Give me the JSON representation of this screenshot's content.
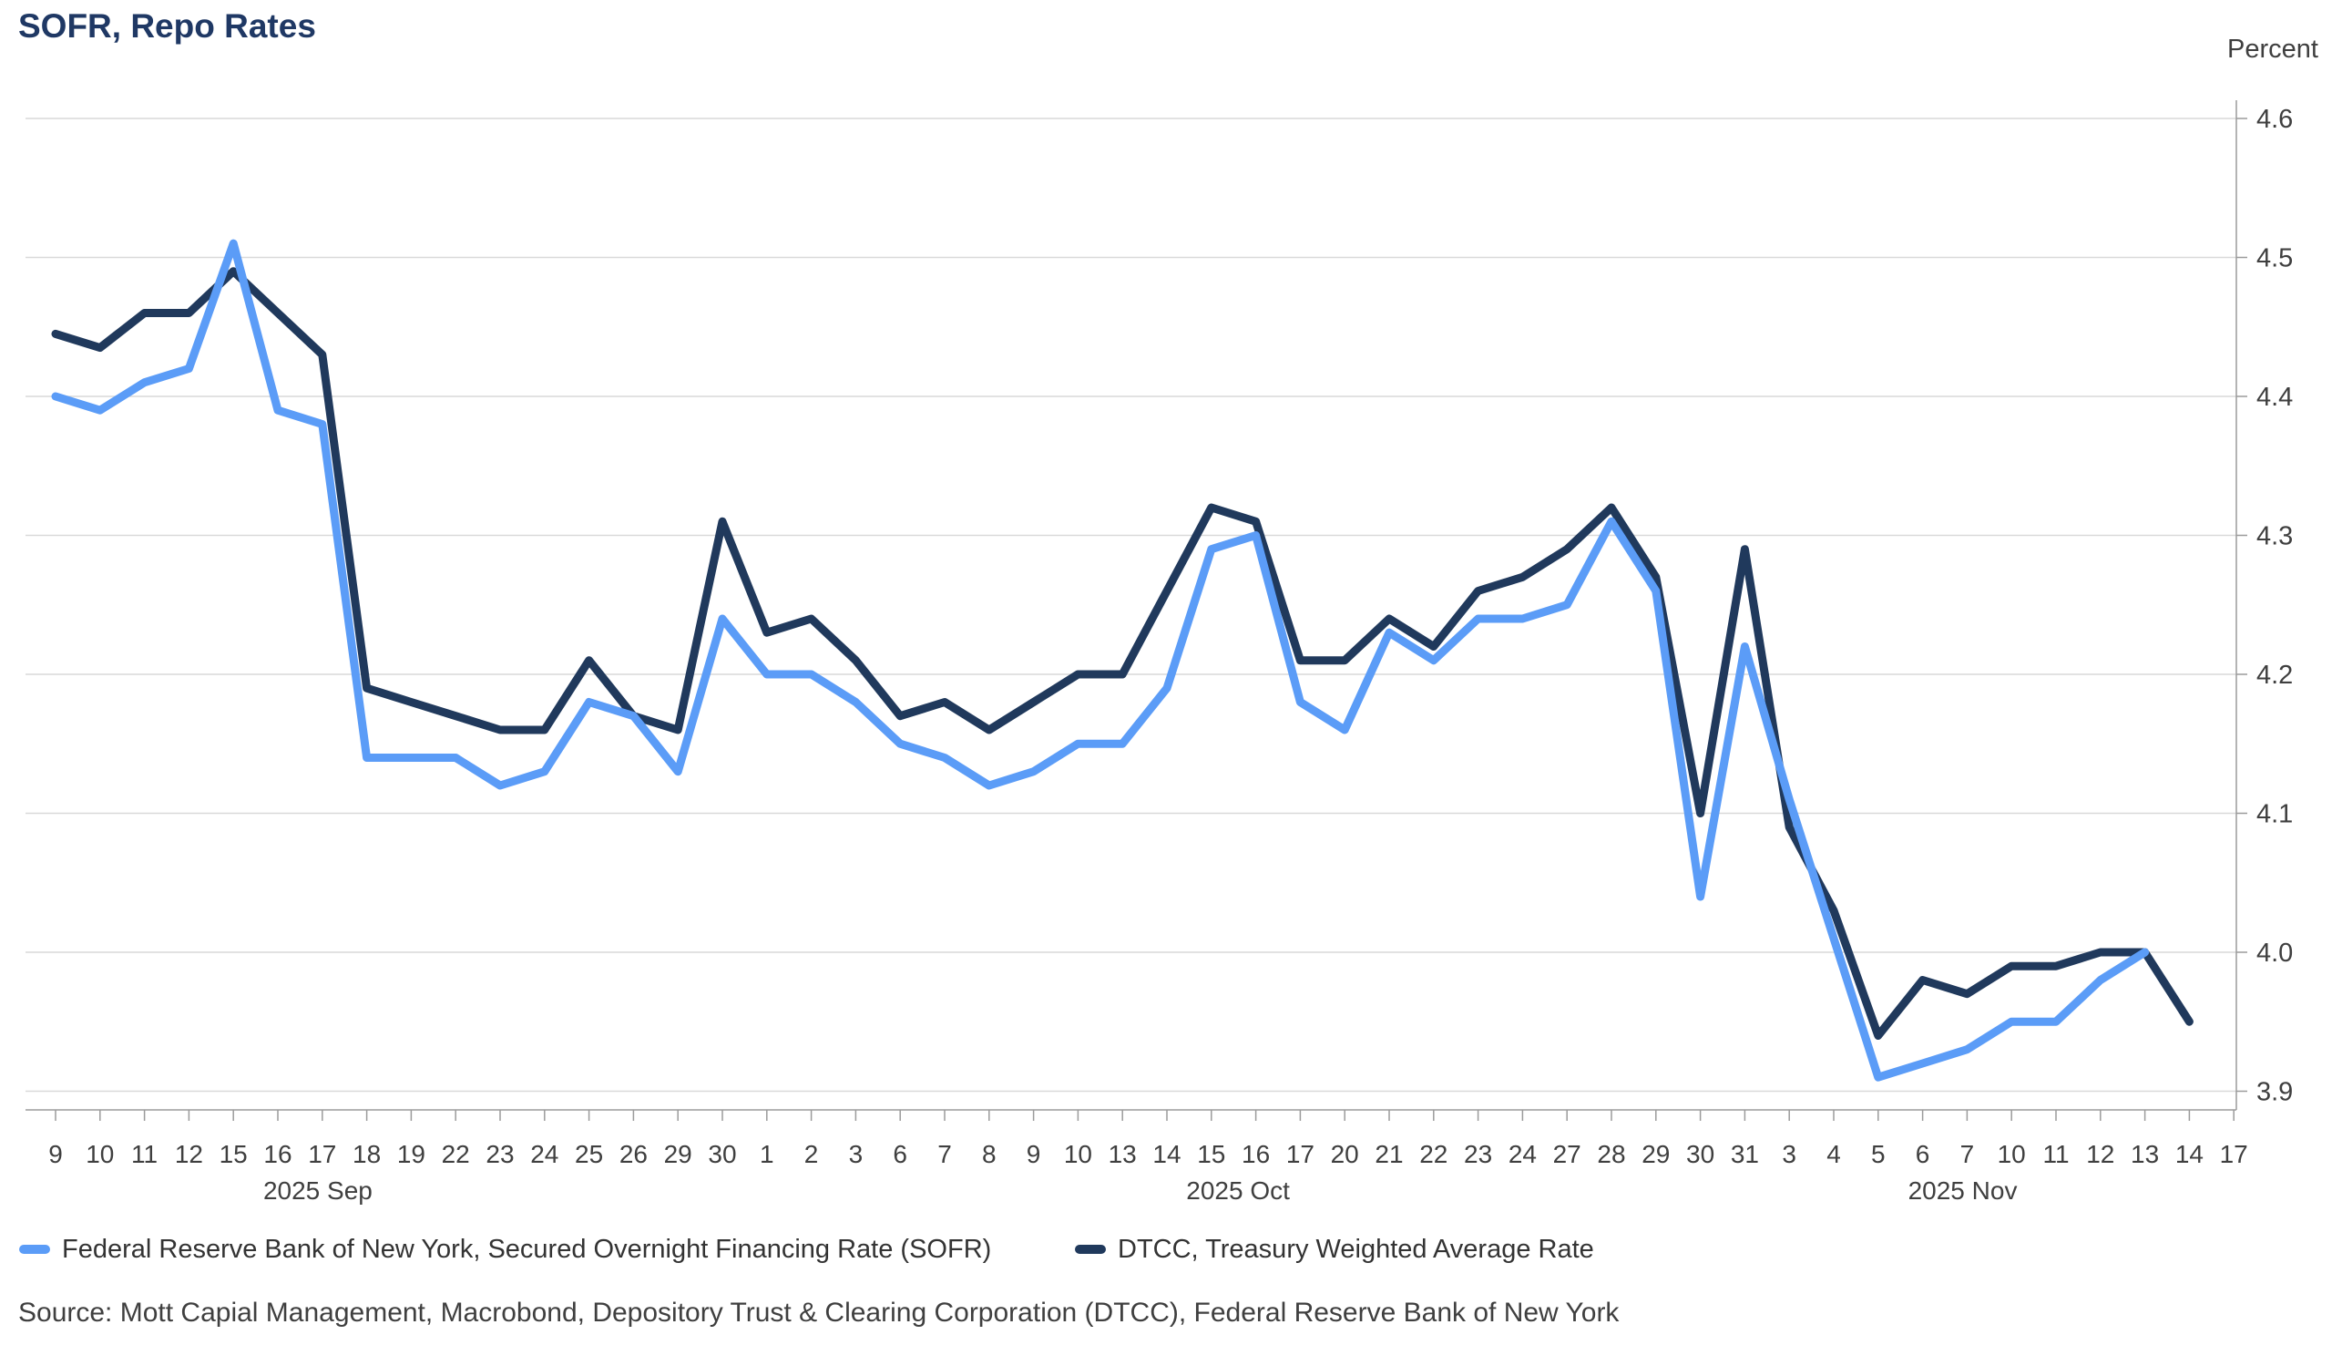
{
  "header": {
    "title": "SOFR, Repo Rates"
  },
  "chart_data": {
    "type": "line",
    "title": "SOFR, Repo Rates",
    "unit_label": "Percent",
    "grid": true,
    "legend_position": "bottom",
    "ylim": [
      3.9,
      4.6
    ],
    "y_ticks": [
      "4.6",
      "4.5",
      "4.4",
      "4.3",
      "4.2",
      "4.1",
      "4.0",
      "3.9"
    ],
    "categories": [
      "9",
      "10",
      "11",
      "12",
      "15",
      "16",
      "17",
      "18",
      "19",
      "22",
      "23",
      "24",
      "25",
      "26",
      "29",
      "30",
      "1",
      "2",
      "3",
      "6",
      "7",
      "8",
      "9",
      "10",
      "13",
      "14",
      "15",
      "16",
      "17",
      "20",
      "21",
      "22",
      "23",
      "24",
      "27",
      "28",
      "29",
      "30",
      "31",
      "3",
      "4",
      "5",
      "6",
      "7",
      "10",
      "11",
      "12",
      "13",
      "14",
      "17"
    ],
    "month_labels": [
      {
        "label": "2025 Sep",
        "slot": 5.9
      },
      {
        "label": "2025 Oct",
        "slot": 26.6
      },
      {
        "label": "2025 Nov",
        "slot": 42.9
      }
    ],
    "series": [
      {
        "name": "Federal Reserve Bank of New York, Secured Overnight Financing Rate (SOFR)",
        "color": "#5B9CF7",
        "values": [
          4.4,
          4.39,
          4.41,
          4.42,
          4.51,
          4.39,
          4.38,
          4.14,
          4.14,
          4.14,
          4.12,
          4.13,
          4.18,
          4.17,
          4.13,
          4.24,
          4.2,
          4.2,
          4.18,
          4.15,
          4.14,
          4.12,
          4.13,
          4.15,
          4.15,
          4.19,
          4.29,
          4.3,
          4.18,
          4.16,
          4.23,
          4.21,
          4.24,
          4.24,
          4.25,
          4.31,
          4.26,
          4.04,
          4.22,
          4.11,
          4.01,
          3.91,
          3.92,
          3.93,
          3.95,
          3.95,
          3.98,
          4.0,
          null,
          null
        ]
      },
      {
        "name": "DTCC, Treasury Weighted Average Rate",
        "color": "#20395C",
        "values": [
          4.445,
          4.435,
          4.46,
          4.46,
          4.49,
          4.46,
          4.43,
          4.19,
          4.18,
          4.17,
          4.16,
          4.16,
          4.21,
          4.17,
          4.16,
          4.31,
          4.23,
          4.24,
          4.21,
          4.17,
          4.18,
          4.16,
          4.18,
          4.2,
          4.2,
          4.26,
          4.32,
          4.31,
          4.21,
          4.21,
          4.24,
          4.22,
          4.26,
          4.27,
          4.29,
          4.32,
          4.27,
          4.1,
          4.29,
          4.09,
          4.03,
          3.94,
          3.98,
          3.97,
          3.99,
          3.99,
          4.0,
          4.0,
          3.95,
          null
        ]
      }
    ],
    "colors": {
      "title": "#1F3864",
      "grid_line": "#d9d9d9",
      "axis_line": "#9b9b9b",
      "tick_label": "#3f3f3f"
    }
  },
  "footer": {
    "source": "Source: Mott Capial Management, Macrobond, Depository Trust & Clearing Corporation (DTCC), Federal Reserve Bank of New York"
  }
}
